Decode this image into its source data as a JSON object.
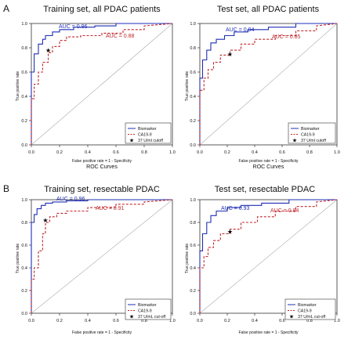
{
  "figure": {
    "panel_labels": [
      "A",
      "B"
    ]
  },
  "colors": {
    "biomarker": "#1f2fb4",
    "ca199": "#c0282d",
    "axis": "#333333",
    "text": "#111111"
  },
  "chart_data": [
    {
      "type": "line",
      "panel": "A",
      "title": "Training set, all PDAC patients",
      "xlabel": "False positive rate = 1 - Specificity",
      "ylabel": "True positive rate",
      "subcaption": "ROC Curves",
      "xlim": [
        0,
        1
      ],
      "ylim": [
        0,
        1
      ],
      "xticks": [
        "0.0",
        "0.2",
        "0.4",
        "0.6",
        "0.8",
        "1.0"
      ],
      "yticks": [
        "0.0",
        "0.2",
        "0.4",
        "0.6",
        "0.8",
        "1.0"
      ],
      "legend_entries": [
        "Biomarker",
        "CA19-9",
        "37 U/ml cutoff"
      ],
      "annotations": [
        "AUC = 0.96",
        "AUC = 0.88"
      ],
      "series": [
        {
          "name": "Biomarker",
          "x": [
            0,
            0,
            0.02,
            0.02,
            0.05,
            0.05,
            0.08,
            0.08,
            0.1,
            0.1,
            0.15,
            0.15,
            0.2,
            0.2,
            0.3,
            0.3,
            0.45,
            0.45,
            0.6,
            0.6,
            1.0
          ],
          "y": [
            0,
            0.6,
            0.6,
            0.75,
            0.75,
            0.83,
            0.83,
            0.87,
            0.87,
            0.9,
            0.9,
            0.93,
            0.93,
            0.95,
            0.95,
            0.97,
            0.97,
            0.98,
            0.98,
            1.0,
            1.0
          ]
        },
        {
          "name": "CA19-9",
          "x": [
            0,
            0,
            0.02,
            0.02,
            0.05,
            0.05,
            0.08,
            0.08,
            0.12,
            0.12,
            0.15,
            0.15,
            0.2,
            0.2,
            0.25,
            0.25,
            0.35,
            0.35,
            0.5,
            0.5,
            0.65,
            0.65,
            0.8,
            0.8,
            1.0
          ],
          "y": [
            0,
            0.38,
            0.38,
            0.5,
            0.5,
            0.6,
            0.6,
            0.68,
            0.68,
            0.76,
            0.76,
            0.81,
            0.81,
            0.86,
            0.86,
            0.89,
            0.89,
            0.9,
            0.9,
            0.92,
            0.92,
            0.95,
            0.95,
            0.98,
            1.0
          ]
        }
      ],
      "cutoff_point": {
        "x": 0.12,
        "y": 0.78
      }
    },
    {
      "type": "line",
      "panel": "A",
      "title": "Test set, all PDAC patients",
      "xlabel": "False positive rate = 1 - Specificity",
      "ylabel": "True positive rate",
      "subcaption": "ROC Curves",
      "xlim": [
        0,
        1
      ],
      "ylim": [
        0,
        1
      ],
      "xticks": [
        "0.0",
        "0.2",
        "0.4",
        "0.6",
        "0.8",
        "1.0"
      ],
      "yticks": [
        "0.0",
        "0.2",
        "0.4",
        "0.6",
        "0.8",
        "1.0"
      ],
      "legend_entries": [
        "Biomarker",
        "CA19-9",
        "37 U/ml cutoff"
      ],
      "annotations": [
        "AUC = 0.94",
        "AUC = 0.85"
      ],
      "series": [
        {
          "name": "Biomarker",
          "x": [
            0,
            0,
            0.02,
            0.02,
            0.05,
            0.05,
            0.08,
            0.08,
            0.12,
            0.12,
            0.18,
            0.18,
            0.25,
            0.25,
            0.35,
            0.35,
            0.5,
            0.5,
            0.7,
            0.7,
            1.0
          ],
          "y": [
            0,
            0.55,
            0.55,
            0.7,
            0.7,
            0.78,
            0.78,
            0.84,
            0.84,
            0.87,
            0.87,
            0.9,
            0.9,
            0.93,
            0.93,
            0.95,
            0.95,
            0.97,
            0.97,
            1.0,
            1.0
          ]
        },
        {
          "name": "CA19-9",
          "x": [
            0,
            0,
            0.03,
            0.03,
            0.06,
            0.06,
            0.1,
            0.1,
            0.15,
            0.15,
            0.22,
            0.22,
            0.3,
            0.3,
            0.4,
            0.4,
            0.55,
            0.55,
            0.7,
            0.7,
            0.85,
            0.85,
            1.0
          ],
          "y": [
            0,
            0.45,
            0.45,
            0.55,
            0.55,
            0.62,
            0.62,
            0.68,
            0.68,
            0.74,
            0.74,
            0.78,
            0.78,
            0.83,
            0.83,
            0.87,
            0.87,
            0.9,
            0.9,
            0.94,
            0.94,
            0.98,
            1.0
          ]
        }
      ],
      "cutoff_point": {
        "x": 0.22,
        "y": 0.75
      }
    },
    {
      "type": "line",
      "panel": "B",
      "title": "Training set,  resectable PDAC",
      "xlabel": "False positive rate = 1 - Specificity",
      "ylabel": "True positive rate",
      "xlim": [
        0,
        1
      ],
      "ylim": [
        0,
        1
      ],
      "xticks": [
        "0.0",
        "0.2",
        "0.4",
        "0.6",
        "0.8",
        "1.0"
      ],
      "yticks": [
        "0.0",
        "0.2",
        "0.4",
        "0.6",
        "0.8",
        "1.0"
      ],
      "legend_entries": [
        "Biomarker",
        "CA19-9",
        "37 U/mL cut-off"
      ],
      "annotations": [
        "AUC = 0.96",
        "AUC = 0.91"
      ],
      "series": [
        {
          "name": "Biomarker",
          "x": [
            0,
            0,
            0.02,
            0.02,
            0.04,
            0.04,
            0.07,
            0.07,
            0.1,
            0.1,
            0.15,
            0.15,
            0.25,
            0.25,
            0.4,
            0.4,
            0.6,
            0.6,
            1.0
          ],
          "y": [
            0,
            0.8,
            0.8,
            0.87,
            0.87,
            0.92,
            0.92,
            0.95,
            0.95,
            0.97,
            0.97,
            0.98,
            0.98,
            0.99,
            0.99,
            1.0,
            1.0,
            1.0,
            1.0
          ]
        },
        {
          "name": "CA19-9",
          "x": [
            0,
            0,
            0.02,
            0.02,
            0.05,
            0.05,
            0.08,
            0.08,
            0.1,
            0.1,
            0.13,
            0.13,
            0.18,
            0.18,
            0.25,
            0.25,
            0.4,
            0.4,
            0.6,
            0.6,
            0.8,
            0.8,
            1.0
          ],
          "y": [
            0,
            0.3,
            0.3,
            0.4,
            0.4,
            0.55,
            0.55,
            0.7,
            0.7,
            0.8,
            0.8,
            0.85,
            0.85,
            0.88,
            0.88,
            0.9,
            0.9,
            0.93,
            0.93,
            0.96,
            0.96,
            0.98,
            1.0
          ]
        }
      ],
      "cutoff_point": {
        "x": 0.1,
        "y": 0.82
      }
    },
    {
      "type": "line",
      "panel": "B",
      "title": "Test set, resectable PDAC",
      "xlabel": "False positive rate = 1 - Specificity",
      "ylabel": "True positive rate",
      "xlim": [
        0,
        1
      ],
      "ylim": [
        0,
        1
      ],
      "xticks": [
        "0.0",
        "0.2",
        "0.4",
        "0.6",
        "0.8",
        "1.0"
      ],
      "yticks": [
        "0.0",
        "0.2",
        "0.4",
        "0.6",
        "0.8",
        "1.0"
      ],
      "legend_entries": [
        "Biomarker",
        "CA19-9",
        "37 U/mL cut-off"
      ],
      "annotations": [
        "AUC = 0.93",
        "AUC = 0.84"
      ],
      "series": [
        {
          "name": "Biomarker",
          "x": [
            0,
            0,
            0.02,
            0.02,
            0.05,
            0.05,
            0.08,
            0.08,
            0.12,
            0.12,
            0.2,
            0.2,
            0.3,
            0.3,
            0.45,
            0.45,
            0.65,
            0.65,
            1.0
          ],
          "y": [
            0,
            0.55,
            0.55,
            0.7,
            0.7,
            0.8,
            0.8,
            0.86,
            0.86,
            0.9,
            0.9,
            0.93,
            0.93,
            0.95,
            0.95,
            0.97,
            0.97,
            1.0,
            1.0
          ]
        },
        {
          "name": "CA19-9",
          "x": [
            0,
            0,
            0.03,
            0.03,
            0.06,
            0.06,
            0.1,
            0.1,
            0.15,
            0.15,
            0.22,
            0.22,
            0.3,
            0.3,
            0.42,
            0.42,
            0.55,
            0.55,
            0.7,
            0.7,
            0.85,
            0.85,
            1.0
          ],
          "y": [
            0,
            0.4,
            0.4,
            0.5,
            0.5,
            0.58,
            0.58,
            0.64,
            0.64,
            0.7,
            0.7,
            0.74,
            0.74,
            0.8,
            0.8,
            0.85,
            0.85,
            0.9,
            0.9,
            0.94,
            0.94,
            0.98,
            1.0
          ]
        }
      ],
      "cutoff_point": {
        "x": 0.22,
        "y": 0.72
      }
    }
  ]
}
